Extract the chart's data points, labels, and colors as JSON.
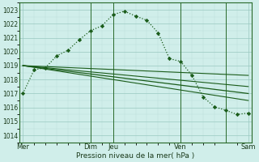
{
  "xlabel": "Pression niveau de la mer( hPa )",
  "ylim": [
    1013.5,
    1023.5
  ],
  "bg_color": "#d0eeea",
  "grid_color_major": "#98c8c0",
  "grid_color_minor": "#b8ddd8",
  "line_color": "#1a5c1a",
  "vline_color": "#2a6a2a",
  "yticks": [
    1014,
    1015,
    1016,
    1017,
    1018,
    1019,
    1020,
    1021,
    1022,
    1023
  ],
  "line1_x": [
    0,
    1,
    2,
    3,
    4,
    5,
    6,
    7,
    8,
    9,
    10,
    11,
    12,
    13,
    14,
    15,
    16,
    17,
    18,
    19,
    20
  ],
  "line1_y": [
    1017.0,
    1018.7,
    1018.85,
    1019.7,
    1020.1,
    1020.85,
    1021.5,
    1021.85,
    1022.65,
    1022.9,
    1022.55,
    1022.25,
    1021.35,
    1019.5,
    1019.3,
    1018.3,
    1016.75,
    1016.05,
    1015.8,
    1015.5,
    1015.6
  ],
  "line2_x": [
    0,
    2,
    4,
    6,
    8,
    10,
    12,
    14,
    16,
    18,
    20
  ],
  "line2_y": [
    1019.0,
    1018.8,
    1018.6,
    1018.4,
    1018.2,
    1018.0,
    1017.8,
    1017.6,
    1017.4,
    1017.2,
    1017.0
  ],
  "line3_x": [
    0,
    20
  ],
  "line3_y": [
    1019.0,
    1018.3
  ],
  "line4_x": [
    0,
    20
  ],
  "line4_y": [
    1019.0,
    1017.5
  ],
  "line5_x": [
    0,
    20
  ],
  "line5_y": [
    1019.0,
    1016.5
  ],
  "vlines_x": [
    6,
    8,
    14,
    18
  ],
  "day_tick_x": [
    0,
    6,
    8,
    14,
    18,
    20
  ],
  "day_tick_labels": [
    "Mer",
    "Dim",
    "Jeu",
    "Ven",
    "",
    "Sam"
  ],
  "xlim": [
    -0.3,
    20.3
  ],
  "n_points": 21
}
